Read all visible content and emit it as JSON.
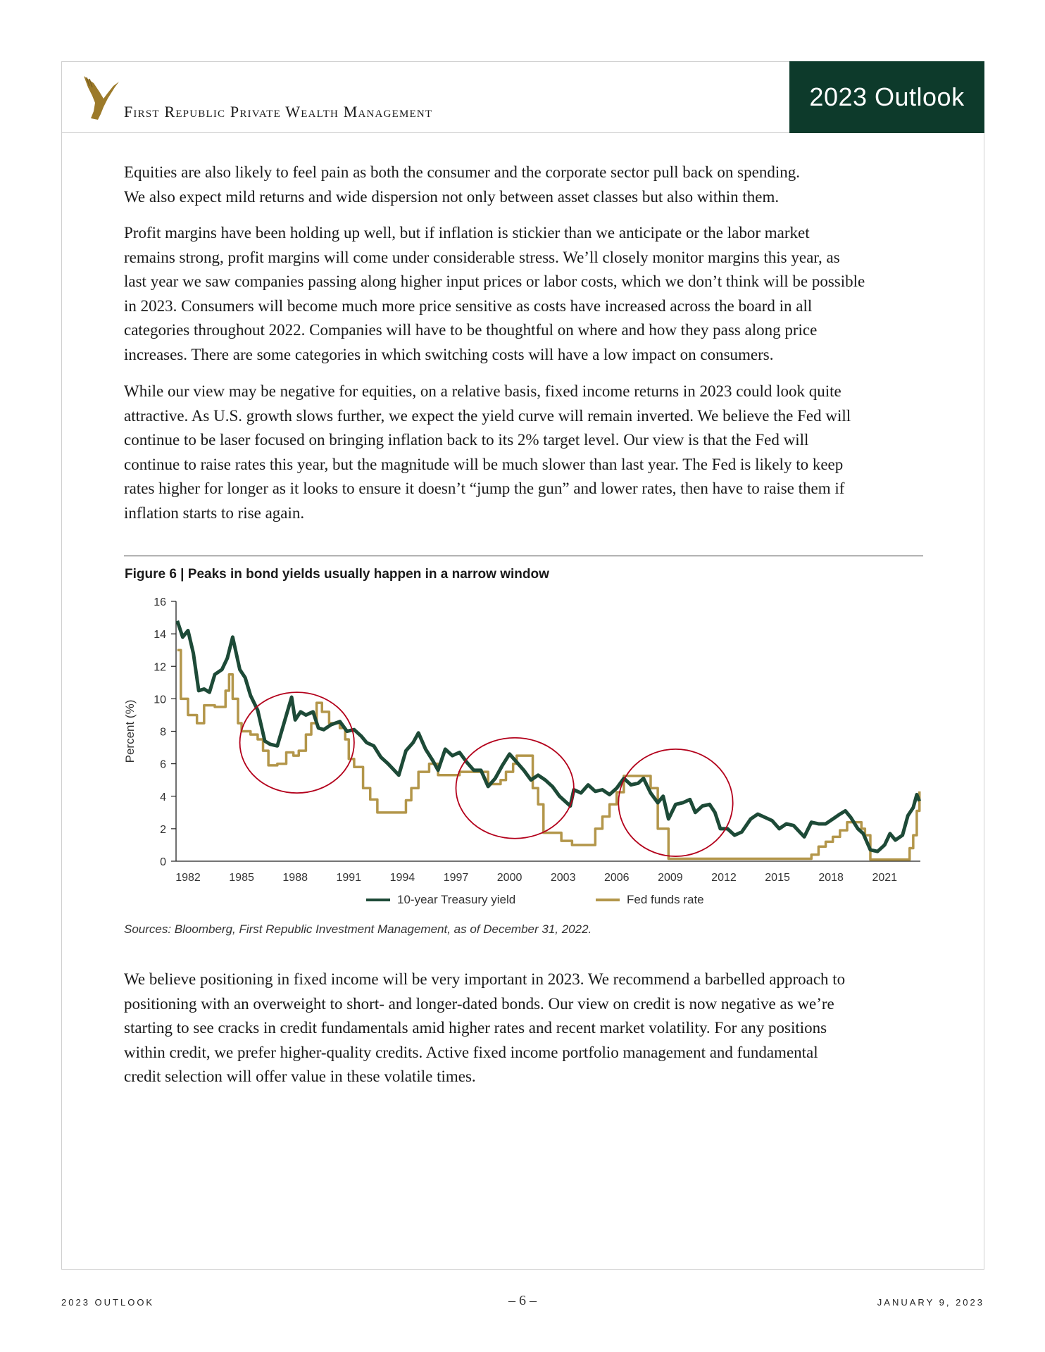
{
  "header": {
    "brand": "First Republic Private Wealth Management",
    "badge": "2023 Outlook"
  },
  "paragraphs": [
    [
      "Equities are also likely to feel pain as both the consumer and the corporate sector pull back on spending.",
      "We also expect mild returns and wide dispersion not only between asset classes but also within them."
    ],
    [
      "Profit margins have been holding up well, but if inflation is stickier than we anticipate or the labor market",
      "remains strong, profit margins will come under considerable stress. We’ll closely monitor margins this year, as",
      "last year we saw companies passing along higher input prices or labor costs, which we don’t think will be possible",
      "in 2023. Consumers will become much more price sensitive as costs have increased across the board in all",
      "categories throughout 2022. Companies will have to be thoughtful on where and how they pass along price",
      "increases. There are some categories in which switching costs will have a low impact on consumers."
    ],
    [
      "While our view may be negative for equities, on a relative basis, fixed income returns in 2023 could look quite",
      "attractive. As U.S. growth slows further, we expect the yield curve will remain inverted. We believe the Fed will",
      "continue to be laser focused on bringing inflation back to its 2% target level. Our view is that the Fed will",
      "continue to raise rates this year, but the magnitude will be much slower than last year. The Fed is likely to keep",
      "rates higher for longer as it looks to ensure it doesn’t “jump the gun” and lower rates, then have to raise them if",
      "inflation starts to rise again."
    ],
    [
      "We believe positioning in fixed income will be very important in 2023. We recommend a barbelled approach to",
      "positioning with an overweight to short- and longer-dated bonds. Our view on credit is now negative as we’re",
      "starting to see cracks in credit fundamentals amid higher rates and recent market volatility. For any positions",
      "within credit, we prefer higher-quality credits. Active fixed income portfolio management and fundamental",
      "credit selection will offer value in these volatile times."
    ]
  ],
  "figure": {
    "title": "Figure 6  |  Peaks in bond yields usually happen in a narrow window",
    "sources": "Sources: Bloomberg, First Republic Investment Management, as of December 31, 2022."
  },
  "chart_data": {
    "type": "line",
    "title": "Figure 6  |  Peaks in bond yields usually happen in a narrow window",
    "ylabel": "Percent (%)",
    "xlabel": "",
    "xlim": [
      1981.33,
      2023.0
    ],
    "ylim": [
      0,
      16
    ],
    "yticks": [
      "0",
      "2",
      "4",
      "6",
      "8",
      "10",
      "12",
      "14",
      "16"
    ],
    "xticks": [
      "1982",
      "1985",
      "1988",
      "1991",
      "1994",
      "1997",
      "2000",
      "2003",
      "2006",
      "2009",
      "2012",
      "2015",
      "2018",
      "2021"
    ],
    "grid": false,
    "legend_placement": "bottom",
    "series": [
      {
        "name": "10-year Treasury yield",
        "color": "#1d4a37",
        "step": false,
        "x": [
          1981.4,
          1981.7,
          1982,
          1982.3,
          1982.6,
          1982.9,
          1983.2,
          1983.5,
          1983.9,
          1984.2,
          1984.5,
          1984.9,
          1985.2,
          1985.5,
          1985.9,
          1986.3,
          1986.6,
          1987,
          1987.4,
          1987.8,
          1988,
          1988.3,
          1988.6,
          1989,
          1989.3,
          1989.6,
          1990,
          1990.5,
          1990.9,
          1991.3,
          1991.7,
          1992,
          1992.4,
          1992.8,
          1993.2,
          1993.8,
          1994.2,
          1994.6,
          1994.9,
          1995.3,
          1995.7,
          1996,
          1996.4,
          1996.8,
          1997.2,
          1997.6,
          1998,
          1998.4,
          1998.8,
          1999.2,
          1999.6,
          2000,
          2000.4,
          2000.8,
          2001.2,
          2001.6,
          2002,
          2002.4,
          2002.8,
          2003.4,
          2003.6,
          2004,
          2004.4,
          2004.8,
          2005.2,
          2005.6,
          2006,
          2006.4,
          2006.8,
          2007.2,
          2007.5,
          2007.9,
          2008.3,
          2008.6,
          2008.9,
          2009.3,
          2009.7,
          2010.1,
          2010.4,
          2010.8,
          2011.2,
          2011.5,
          2011.8,
          2012.2,
          2012.6,
          2013,
          2013.5,
          2013.9,
          2014.3,
          2014.7,
          2015.1,
          2015.5,
          2015.9,
          2016.5,
          2016.9,
          2017.3,
          2017.7,
          2018.1,
          2018.5,
          2018.8,
          2019.1,
          2019.5,
          2019.8,
          2020.2,
          2020.6,
          2021,
          2021.3,
          2021.6,
          2022,
          2022.3,
          2022.6,
          2022.8,
          2022.95
        ],
        "values": [
          14.8,
          13.8,
          14.2,
          12.8,
          10.5,
          10.6,
          10.4,
          11.5,
          11.8,
          12.5,
          13.8,
          11.8,
          11.3,
          10.2,
          9.3,
          7.4,
          7.2,
          7.1,
          8.6,
          10.1,
          8.7,
          9.2,
          9.0,
          9.2,
          8.2,
          8.1,
          8.4,
          8.6,
          8.0,
          8.1,
          7.7,
          7.3,
          7.1,
          6.4,
          6.0,
          5.3,
          6.8,
          7.3,
          7.9,
          6.9,
          6.2,
          5.6,
          6.9,
          6.5,
          6.7,
          6.1,
          5.6,
          5.6,
          4.6,
          5.1,
          5.9,
          6.6,
          6.1,
          5.6,
          5.0,
          5.3,
          5.0,
          4.6,
          4.0,
          3.4,
          4.4,
          4.2,
          4.7,
          4.3,
          4.4,
          4.1,
          4.5,
          5.1,
          4.7,
          4.8,
          5.1,
          4.2,
          3.6,
          4.0,
          2.6,
          3.5,
          3.6,
          3.8,
          3.0,
          3.4,
          3.5,
          3.0,
          2.0,
          2.0,
          1.6,
          1.8,
          2.6,
          2.9,
          2.7,
          2.5,
          2.0,
          2.3,
          2.2,
          1.5,
          2.4,
          2.3,
          2.3,
          2.6,
          2.9,
          3.1,
          2.7,
          2.0,
          1.7,
          0.7,
          0.6,
          1.0,
          1.7,
          1.3,
          1.6,
          2.8,
          3.3,
          4.1,
          3.7
        ]
      },
      {
        "name": "Fed funds rate",
        "color": "#b3964a",
        "step": true,
        "x": [
          1981.4,
          1981.6,
          1982,
          1982.5,
          1982.9,
          1983.5,
          1984.1,
          1984.3,
          1984.5,
          1984.8,
          1985,
          1985.5,
          1985.9,
          1986.2,
          1986.5,
          1987,
          1987.5,
          1987.9,
          1988.2,
          1988.6,
          1988.9,
          1989.2,
          1989.5,
          1989.9,
          1990.5,
          1990.8,
          1991,
          1991.3,
          1991.8,
          1992.2,
          1992.6,
          1994,
          1994.2,
          1994.5,
          1994.9,
          1995.5,
          1996,
          1997.2,
          1998.8,
          1999.5,
          1999.8,
          2000.2,
          2000.4,
          2001,
          2001.3,
          2001.6,
          2001.9,
          2002.9,
          2003.5,
          2004.4,
          2004.8,
          2005.2,
          2005.6,
          2006,
          2006.4,
          2007.6,
          2007.9,
          2008.3,
          2008.9,
          2015.9,
          2016.9,
          2017.3,
          2017.7,
          2018.1,
          2018.5,
          2018.9,
          2019.5,
          2019.7,
          2019.9,
          2020.2,
          2022.2,
          2022.4,
          2022.6,
          2022.8,
          2022.95
        ],
        "values": [
          13.0,
          10.0,
          9.0,
          8.5,
          9.6,
          9.5,
          10.5,
          11.5,
          10.0,
          8.5,
          8.0,
          7.8,
          7.5,
          6.8,
          5.9,
          6.0,
          6.7,
          6.5,
          6.8,
          7.8,
          8.5,
          9.75,
          9.2,
          8.5,
          8.2,
          7.5,
          6.3,
          5.8,
          4.5,
          3.8,
          3.0,
          3.0,
          3.75,
          4.5,
          5.5,
          6.0,
          5.3,
          5.5,
          4.75,
          5.0,
          5.5,
          6.0,
          6.5,
          6.5,
          4.5,
          3.5,
          1.75,
          1.25,
          1.0,
          1.0,
          2.0,
          2.75,
          3.5,
          4.25,
          5.25,
          5.25,
          4.5,
          2.0,
          0.15,
          0.15,
          0.4,
          0.9,
          1.2,
          1.5,
          1.9,
          2.4,
          2.4,
          2.0,
          1.6,
          0.1,
          0.1,
          0.8,
          1.6,
          3.1,
          4.3
        ]
      }
    ],
    "annotations": [
      {
        "type": "ellipse",
        "color": "#b3001b",
        "cx": 1988.1,
        "cy": 7.3,
        "rx_years": 3.2,
        "ry_percent": 3.1
      },
      {
        "type": "ellipse",
        "color": "#b3001b",
        "cx": 2000.3,
        "cy": 4.5,
        "rx_years": 3.3,
        "ry_percent": 3.1
      },
      {
        "type": "ellipse",
        "color": "#b3001b",
        "cx": 2009.3,
        "cy": 3.6,
        "rx_years": 3.2,
        "ry_percent": 3.3
      }
    ]
  },
  "footer": {
    "left": "2023 OUTLOOK",
    "page": "– 6 –",
    "right": "JANUARY 9, 2023"
  },
  "colors": {
    "brand_green": "#0d3a2b",
    "gold": "#b3964a"
  }
}
